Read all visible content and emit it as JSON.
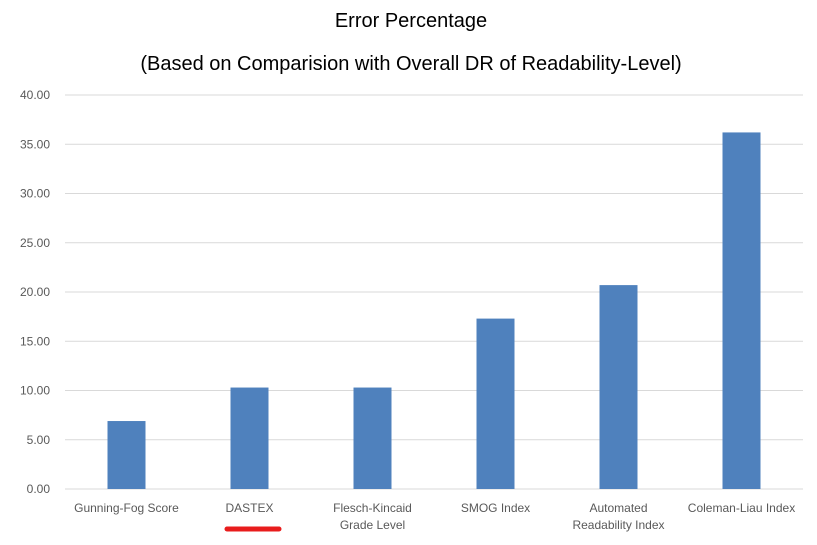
{
  "chart_data": {
    "type": "bar",
    "title": "Error Percentage",
    "subtitle": "(Based on Comparision with Overall DR of Readability-Level)",
    "categories": [
      "Gunning-Fog Score",
      "DASTEX",
      "Flesch-Kincaid\nGrade Level",
      "SMOG Index",
      "Automated\nReadability Index",
      "Coleman-Liau Index"
    ],
    "values": [
      6.9,
      10.3,
      10.3,
      17.3,
      20.7,
      36.2
    ],
    "color": "#4f81bd",
    "ylim": [
      0,
      40
    ],
    "yticks": [
      {
        "value": 0,
        "label": "0.00"
      },
      {
        "value": 5,
        "label": "5.00"
      },
      {
        "value": 10,
        "label": "10.00"
      },
      {
        "value": 15,
        "label": "15.00"
      },
      {
        "value": 20,
        "label": "20.00"
      },
      {
        "value": 25,
        "label": "25.00"
      },
      {
        "value": 30,
        "label": "30.00"
      },
      {
        "value": 35,
        "label": "35.00"
      },
      {
        "value": 40,
        "label": "40.00"
      }
    ],
    "grid": true
  }
}
